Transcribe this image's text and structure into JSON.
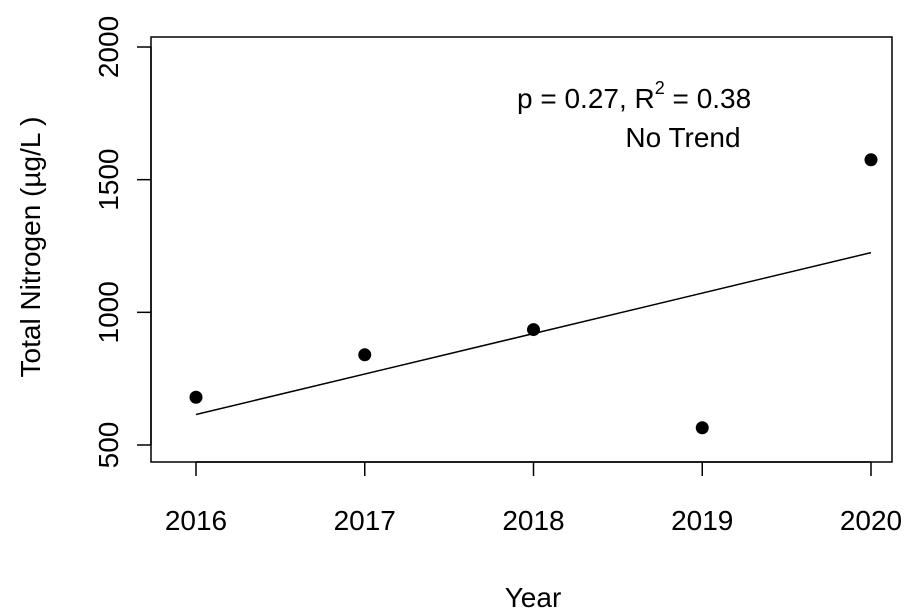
{
  "chart_data": {
    "type": "scatter",
    "xlabel": "Year",
    "ylabel": "Total Nitrogen (µg/L )",
    "xlim": [
      2016,
      2020
    ],
    "ylim": [
      500,
      2000
    ],
    "x_ticks": [
      "2016",
      "2017",
      "2018",
      "2019",
      "2020"
    ],
    "y_ticks": [
      "500",
      "1000",
      "1500",
      "2000"
    ],
    "points": [
      {
        "x": 2016,
        "y": 680
      },
      {
        "x": 2017,
        "y": 840
      },
      {
        "x": 2018,
        "y": 935
      },
      {
        "x": 2019,
        "y": 565
      },
      {
        "x": 2020,
        "y": 1575
      }
    ],
    "trend_line": {
      "x": [
        2016,
        2020
      ],
      "y": [
        615,
        1225
      ]
    },
    "annotation": {
      "line1_p": "p = 0.27, R",
      "line1_sup": "2",
      "line1_r2": " = 0.38",
      "line2": "No Trend"
    },
    "grid": false,
    "legend": "none",
    "colors": {
      "points": "#000000",
      "line": "#000000",
      "axes": "#000000"
    }
  }
}
